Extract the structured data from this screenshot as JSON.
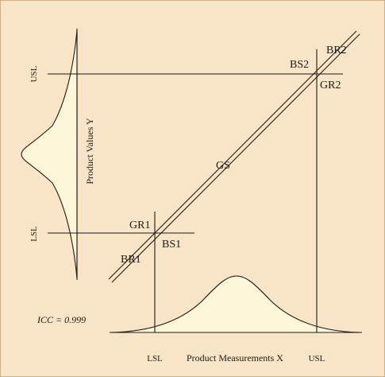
{
  "labels": {
    "br2": "BR2",
    "bs2": "BS2",
    "gr2": "GR2",
    "gs": "GS",
    "gr1": "GR1",
    "bs1": "BS1",
    "br1": "BR1",
    "usl_y": "USL",
    "lsl_y": "LSL",
    "axis_y": "Product Values Y",
    "axis_x": "Product Measurements X",
    "lsl_x": "LSL",
    "usl_x": "USL",
    "icc": "ICC = 0.999"
  },
  "colors": {
    "background": "#f8e4c6",
    "curve_fill": "#fdf6d8",
    "line": "#1e1a14"
  }
}
